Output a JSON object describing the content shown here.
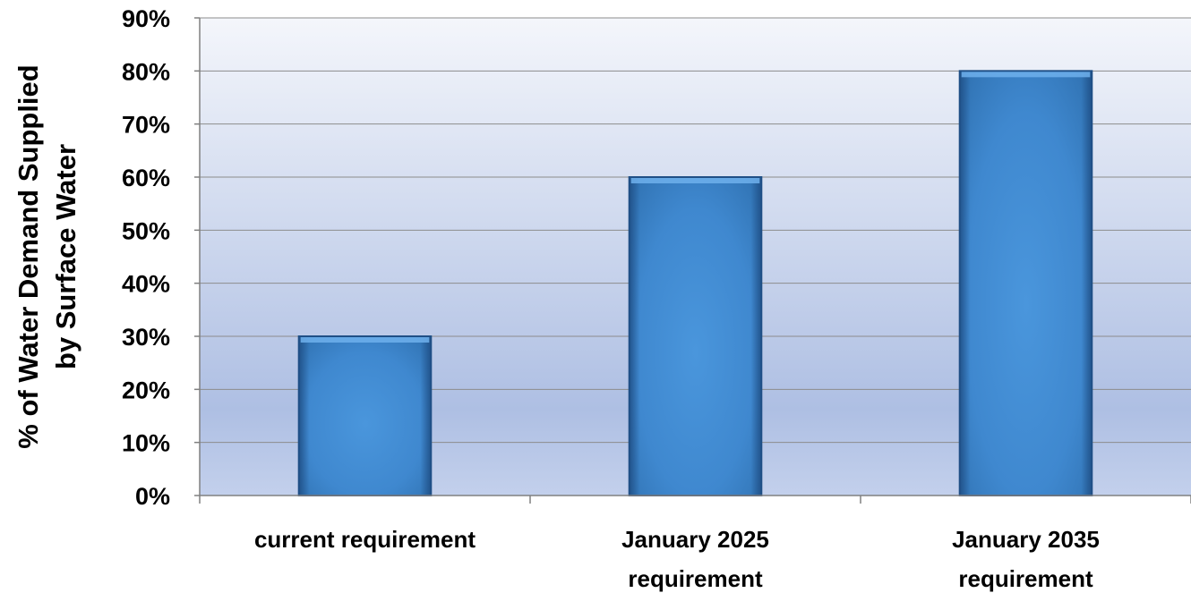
{
  "chart_data": {
    "type": "bar",
    "categories": [
      [
        "current requirement"
      ],
      [
        "January 2025",
        "requirement"
      ],
      [
        "January 2035",
        "requirement"
      ]
    ],
    "values": [
      30,
      60,
      80
    ],
    "ylabel": [
      "% of Water Demand Supplied",
      "by Surface Water"
    ],
    "ylim": [
      0,
      90
    ],
    "yticks": [
      0,
      10,
      20,
      30,
      40,
      50,
      60,
      70,
      80,
      90
    ],
    "tick_suffix": "%",
    "grid": true,
    "colors": {
      "bar_light": "#4a96dc",
      "bar_dark": "#1f5f9e",
      "bg_top": "#f4f6fb",
      "bg_mid": "#aebfe3",
      "grid": "#8c8c8c"
    }
  }
}
